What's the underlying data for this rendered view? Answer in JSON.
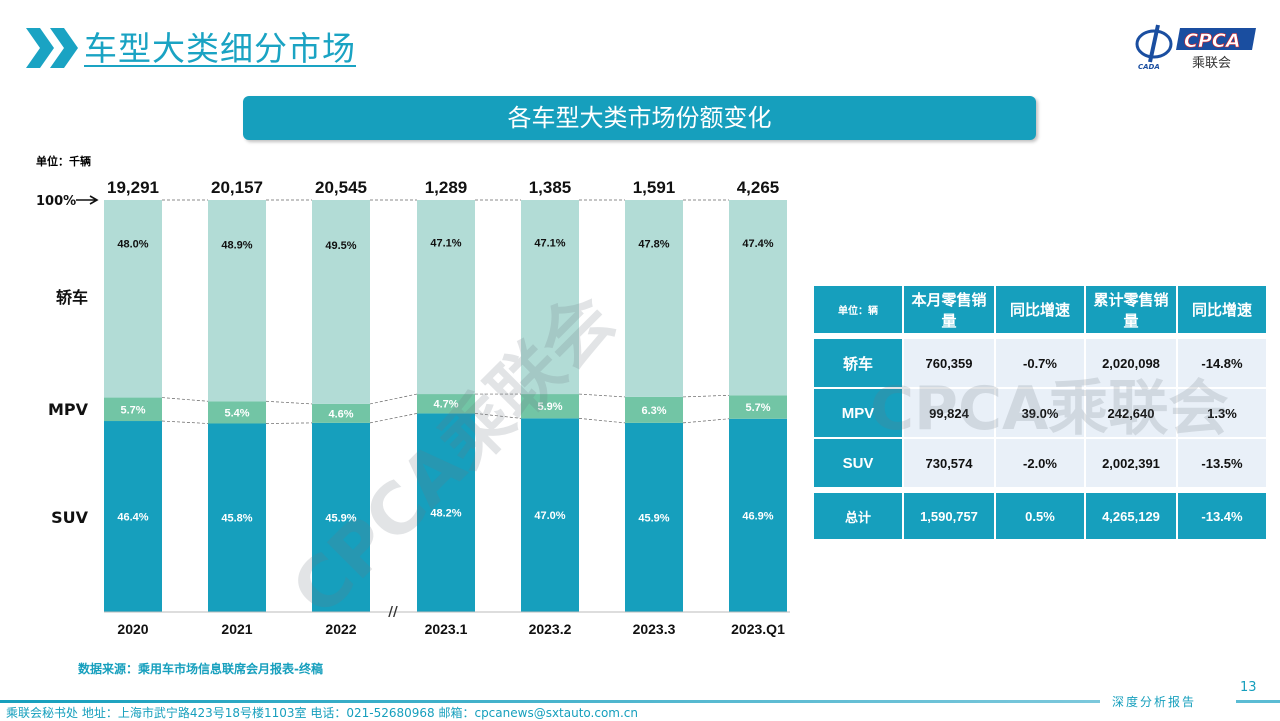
{
  "header": {
    "title": "车型大类细分市场",
    "logo_text": "CPCA",
    "logo_sub": "乘联会",
    "logo_small": "CADA"
  },
  "banner": "各车型大类市场份额变化",
  "unit_label": "单位：千辆",
  "watermark": "CPCA乘联会",
  "colors": {
    "sedan": "#b2dcd6",
    "mpv": "#72c5a5",
    "suv": "#169fbd",
    "accent": "#169fbd"
  },
  "chart_data": {
    "type": "bar",
    "stacked": true,
    "normalized": true,
    "categories": [
      "2020",
      "2021",
      "2022",
      "2023.1",
      "2023.2",
      "2023.3",
      "2023.Q1"
    ],
    "totals": [
      "19,291",
      "20,157",
      "20,545",
      "1,289",
      "1,385",
      "1,591",
      "4,265"
    ],
    "top_marker": "100%",
    "series": [
      {
        "name": "SUV",
        "values": [
          46.4,
          45.8,
          45.9,
          48.2,
          47.0,
          45.9,
          46.9
        ]
      },
      {
        "name": "MPV",
        "values": [
          5.7,
          5.4,
          4.6,
          4.7,
          5.9,
          6.3,
          5.7
        ]
      },
      {
        "name": "轿车",
        "values": [
          48.0,
          48.9,
          49.5,
          47.1,
          47.1,
          47.8,
          47.4
        ]
      }
    ],
    "axis_break": "//"
  },
  "table": {
    "headers": [
      "单位：辆",
      "本月零售销量",
      "同比增速",
      "累计零售销量",
      "同比增速"
    ],
    "rows": [
      [
        "轿车",
        "760,359",
        "-0.7%",
        "2,020,098",
        "-14.8%"
      ],
      [
        "MPV",
        "99,824",
        "39.0%",
        "242,640",
        "1.3%"
      ],
      [
        "SUV",
        "730,574",
        "-2.0%",
        "2,002,391",
        "-13.5%"
      ]
    ],
    "total": [
      "总计",
      "1,590,757",
      "0.5%",
      "4,265,129",
      "-13.4%"
    ]
  },
  "source": "数据来源：乘用车市场信息联席会月报表-终稿",
  "page_number": "13",
  "tagline": "深度分析报告",
  "footer": "乘联会秘书处   地址：上海市武宁路423号18号楼1103室  电话：021-52680968   邮箱：cpcanews@sxtauto.com.cn"
}
